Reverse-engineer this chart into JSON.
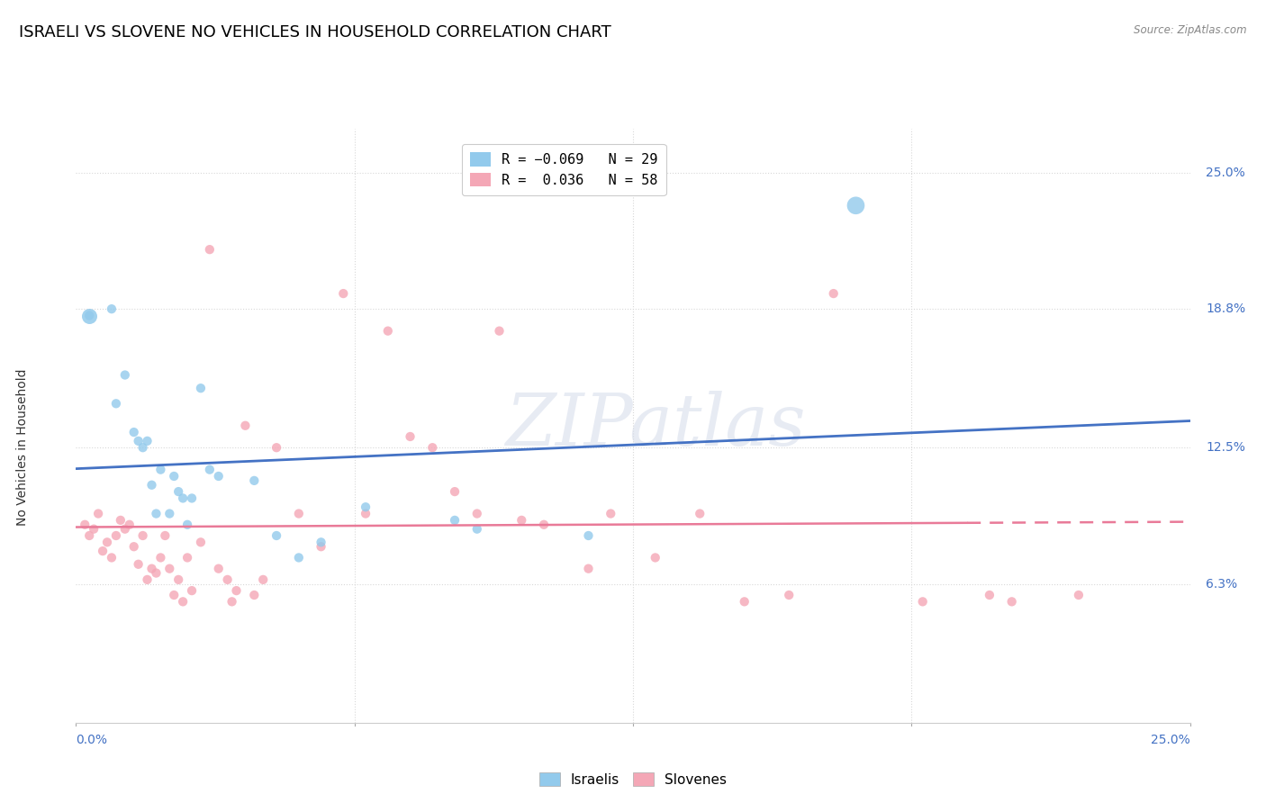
{
  "title": "ISRAELI VS SLOVENE NO VEHICLES IN HOUSEHOLD CORRELATION CHART",
  "source": "Source: ZipAtlas.com",
  "ylabel": "No Vehicles in Household",
  "ytick_labels": [
    "6.3%",
    "12.5%",
    "18.8%",
    "25.0%"
  ],
  "ytick_values": [
    6.3,
    12.5,
    18.8,
    25.0
  ],
  "xlim": [
    0.0,
    25.0
  ],
  "ylim": [
    0.0,
    27.0
  ],
  "ymax_display": 25.0,
  "legend_r_israeli": "R = -0.069",
  "legend_n_israeli": "N = 29",
  "legend_r_slovene": "R =  0.036",
  "legend_n_slovene": "N = 58",
  "israeli_color": "#92CAEC",
  "slovene_color": "#F4A7B6",
  "israeli_line_color": "#4472C4",
  "slovene_line_color": "#E97A98",
  "watermark": "ZIPatlas",
  "israeli_points": [
    [
      0.3,
      18.5
    ],
    [
      0.8,
      18.8
    ],
    [
      0.9,
      14.5
    ],
    [
      1.1,
      15.8
    ],
    [
      1.3,
      13.2
    ],
    [
      1.4,
      12.8
    ],
    [
      1.5,
      12.5
    ],
    [
      1.6,
      12.8
    ],
    [
      1.7,
      10.8
    ],
    [
      1.8,
      9.5
    ],
    [
      1.9,
      11.5
    ],
    [
      2.1,
      9.5
    ],
    [
      2.2,
      11.2
    ],
    [
      2.3,
      10.5
    ],
    [
      2.4,
      10.2
    ],
    [
      2.5,
      9.0
    ],
    [
      2.6,
      10.2
    ],
    [
      2.8,
      15.2
    ],
    [
      3.0,
      11.5
    ],
    [
      3.2,
      11.2
    ],
    [
      4.0,
      11.0
    ],
    [
      4.5,
      8.5
    ],
    [
      5.0,
      7.5
    ],
    [
      5.5,
      8.2
    ],
    [
      6.5,
      9.8
    ],
    [
      8.5,
      9.2
    ],
    [
      9.0,
      8.8
    ],
    [
      11.5,
      8.5
    ],
    [
      17.5,
      23.5
    ]
  ],
  "slovene_points": [
    [
      0.2,
      9.0
    ],
    [
      0.3,
      8.5
    ],
    [
      0.4,
      8.8
    ],
    [
      0.5,
      9.5
    ],
    [
      0.6,
      7.8
    ],
    [
      0.7,
      8.2
    ],
    [
      0.8,
      7.5
    ],
    [
      0.9,
      8.5
    ],
    [
      1.0,
      9.2
    ],
    [
      1.1,
      8.8
    ],
    [
      1.2,
      9.0
    ],
    [
      1.3,
      8.0
    ],
    [
      1.4,
      7.2
    ],
    [
      1.5,
      8.5
    ],
    [
      1.6,
      6.5
    ],
    [
      1.7,
      7.0
    ],
    [
      1.8,
      6.8
    ],
    [
      1.9,
      7.5
    ],
    [
      2.0,
      8.5
    ],
    [
      2.1,
      7.0
    ],
    [
      2.2,
      5.8
    ],
    [
      2.3,
      6.5
    ],
    [
      2.4,
      5.5
    ],
    [
      2.5,
      7.5
    ],
    [
      2.6,
      6.0
    ],
    [
      2.8,
      8.2
    ],
    [
      3.0,
      21.5
    ],
    [
      3.2,
      7.0
    ],
    [
      3.4,
      6.5
    ],
    [
      3.5,
      5.5
    ],
    [
      3.6,
      6.0
    ],
    [
      3.8,
      13.5
    ],
    [
      4.0,
      5.8
    ],
    [
      4.2,
      6.5
    ],
    [
      4.5,
      12.5
    ],
    [
      5.0,
      9.5
    ],
    [
      5.5,
      8.0
    ],
    [
      6.0,
      19.5
    ],
    [
      6.5,
      9.5
    ],
    [
      7.0,
      17.8
    ],
    [
      7.5,
      13.0
    ],
    [
      8.0,
      12.5
    ],
    [
      8.5,
      10.5
    ],
    [
      9.0,
      9.5
    ],
    [
      9.5,
      17.8
    ],
    [
      10.0,
      9.2
    ],
    [
      10.5,
      9.0
    ],
    [
      11.5,
      7.0
    ],
    [
      12.0,
      9.5
    ],
    [
      13.0,
      7.5
    ],
    [
      14.0,
      9.5
    ],
    [
      15.0,
      5.5
    ],
    [
      16.0,
      5.8
    ],
    [
      17.0,
      19.5
    ],
    [
      19.0,
      5.5
    ],
    [
      20.5,
      5.8
    ],
    [
      21.0,
      5.5
    ],
    [
      22.5,
      5.8
    ]
  ],
  "israeli_bubble_size": 55,
  "israeli_large_size": 200,
  "slovene_bubble_size": 55,
  "background_color": "#FFFFFF",
  "grid_color": "#D8D8D8",
  "axis_label_color": "#4472C4",
  "title_color": "#000000",
  "title_fontsize": 13,
  "axis_fontsize": 10,
  "legend_fontsize": 11
}
